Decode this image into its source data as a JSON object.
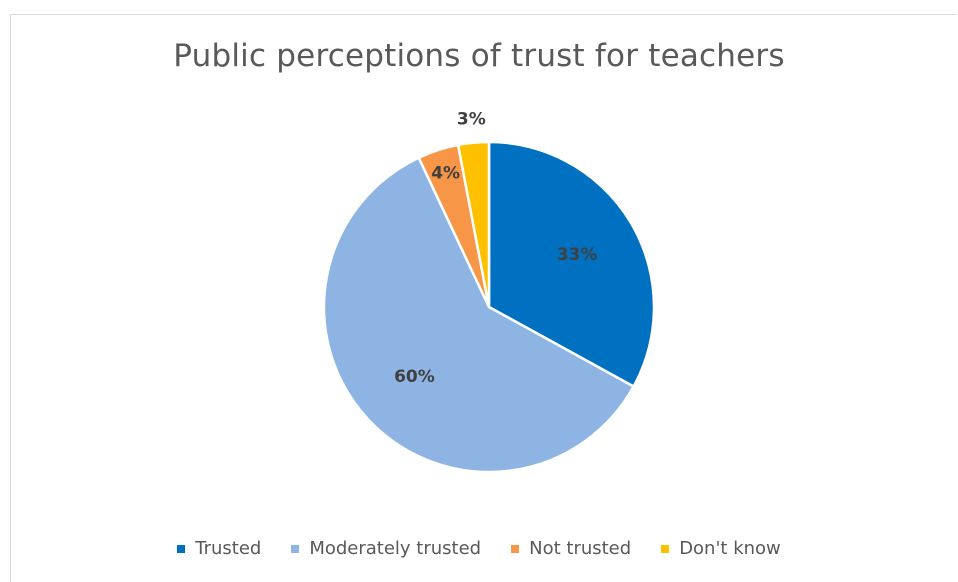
{
  "chart_data": {
    "type": "pie",
    "title": "Public perceptions of trust for teachers",
    "categories": [
      "Trusted",
      "Moderately trusted",
      "Not trusted",
      "Don't know"
    ],
    "values": [
      33,
      60,
      4,
      3
    ],
    "data_labels": [
      "33%",
      "60%",
      "4%",
      "3%"
    ],
    "colors": [
      "#0070c0",
      "#8eb4e3",
      "#f79646",
      "#ffc000"
    ],
    "legend": {
      "position": "bottom",
      "items": [
        "Trusted",
        "Moderately trusted",
        "Not trusted",
        "Don't know"
      ]
    }
  }
}
